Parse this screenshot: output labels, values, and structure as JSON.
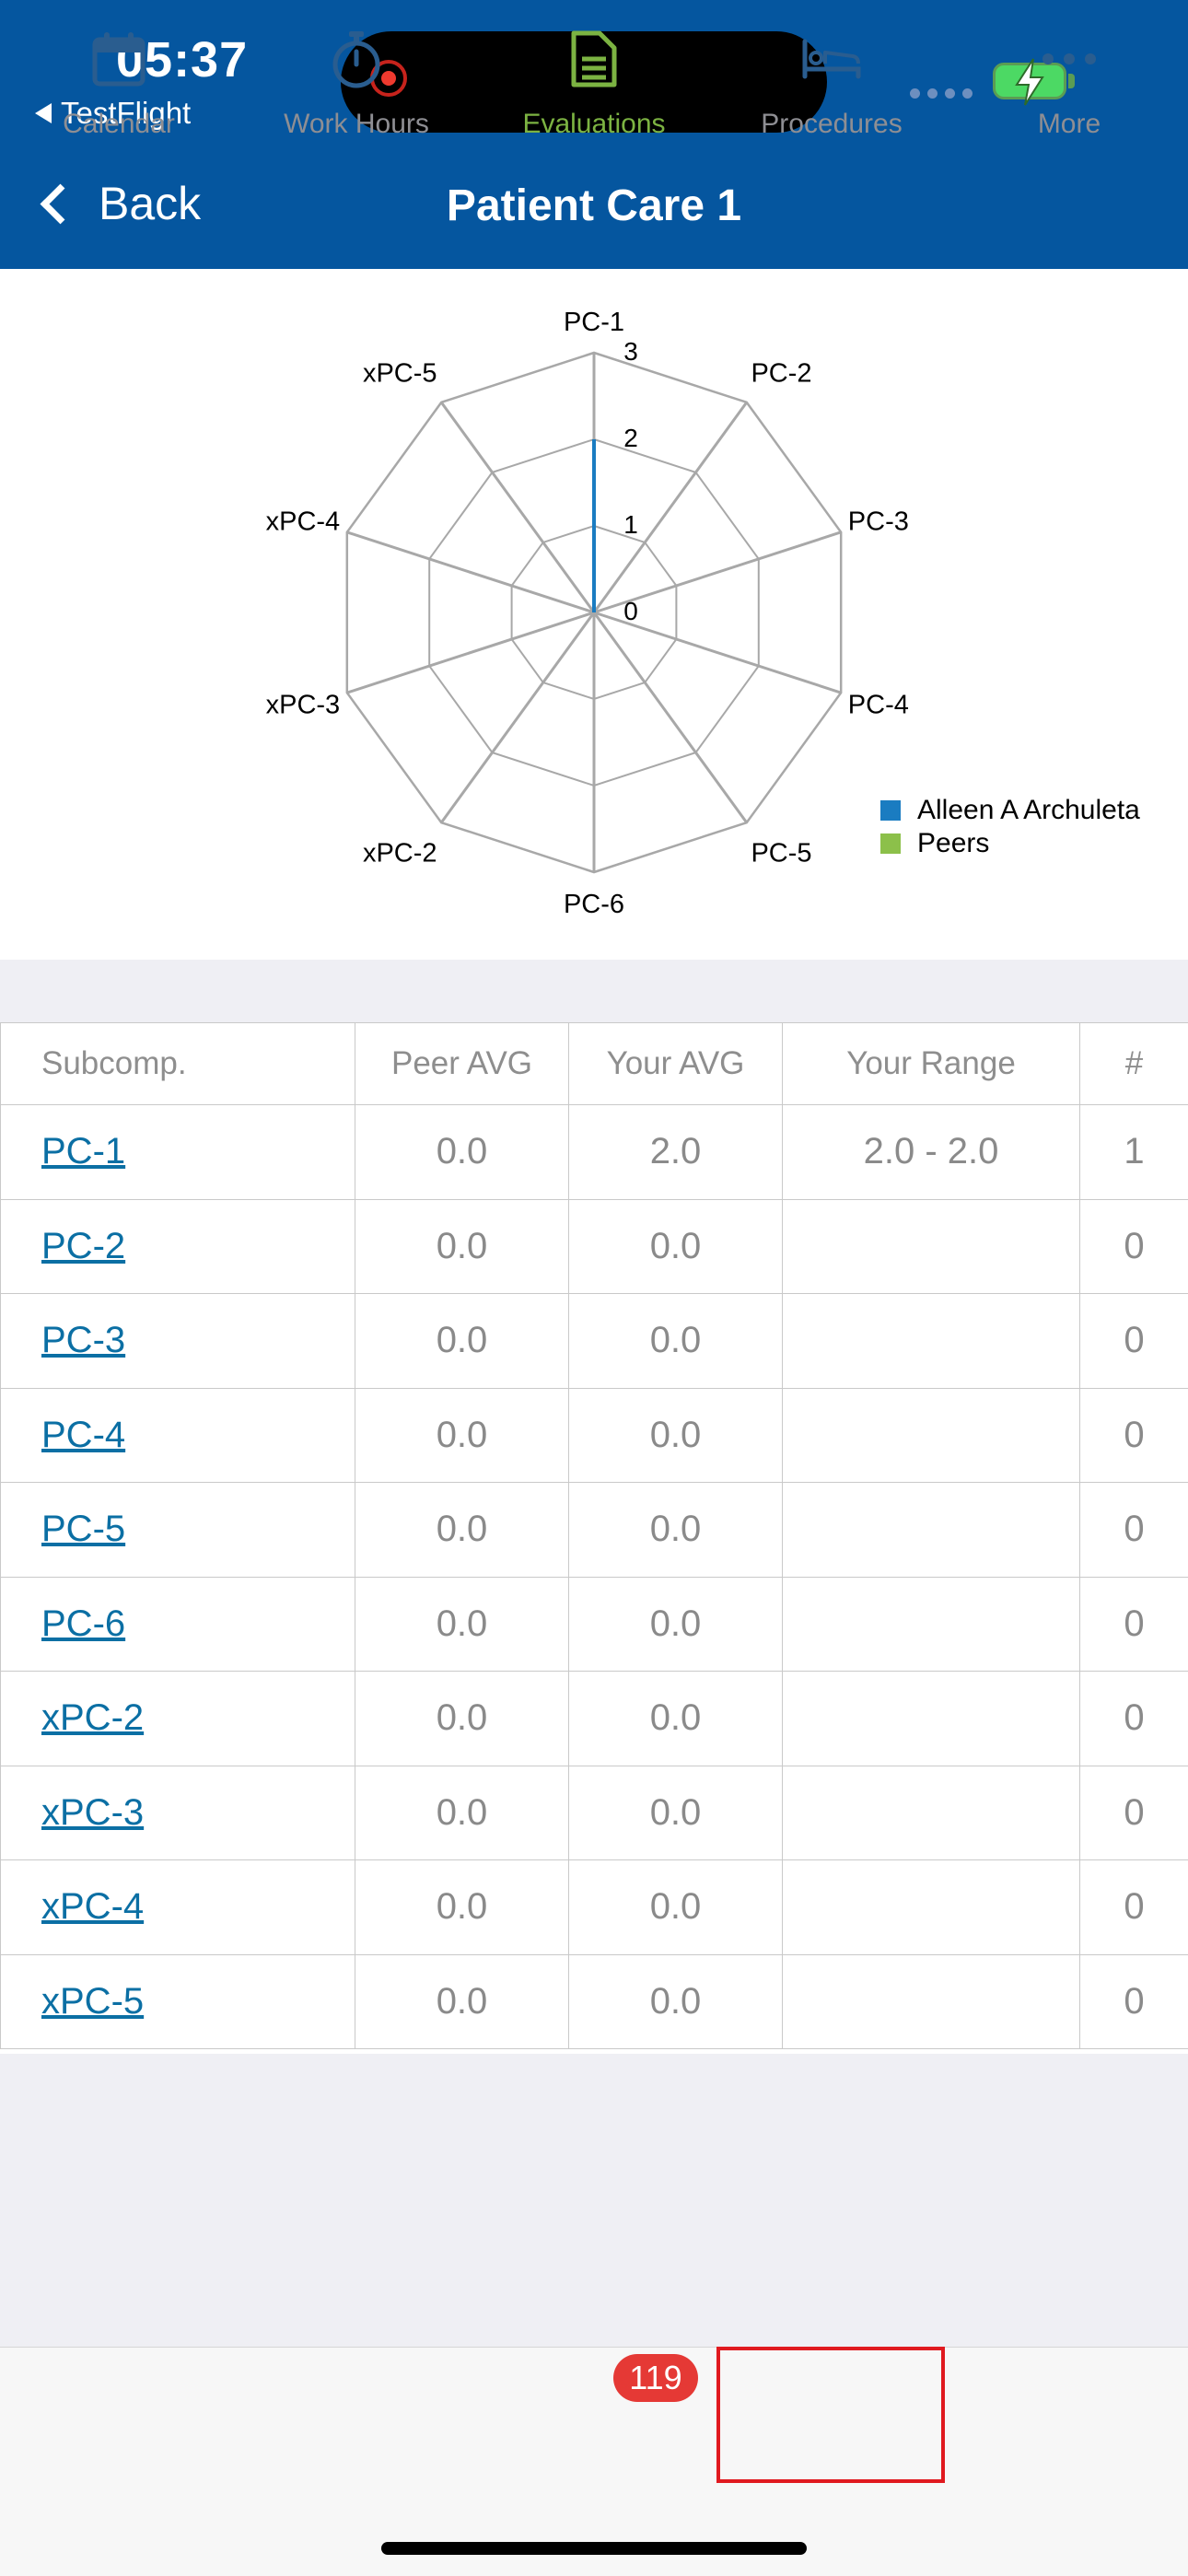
{
  "status_bar": {
    "time": "05:37",
    "back_app": "TestFlight"
  },
  "nav": {
    "back_label": "Back",
    "title": "Patient Care 1"
  },
  "chart_data": {
    "type": "radar",
    "axes": [
      "PC-1",
      "PC-2",
      "PC-3",
      "PC-4",
      "PC-5",
      "PC-6",
      "xPC-2",
      "xPC-3",
      "xPC-4",
      "xPC-5"
    ],
    "scale_ticks": [
      "0",
      "1",
      "2",
      "3"
    ],
    "range": [
      0,
      3
    ],
    "series": [
      {
        "name": "Alleen A Archuleta",
        "color": "#1a7cc1",
        "values": [
          2,
          0,
          0,
          0,
          0,
          0,
          0,
          0,
          0,
          0
        ]
      },
      {
        "name": "Peers",
        "color": "#8cc04a",
        "values": [
          0,
          0,
          0,
          0,
          0,
          0,
          0,
          0,
          0,
          0
        ]
      }
    ],
    "legend_position": "bottom-right"
  },
  "table": {
    "headers": [
      "Subcomp.",
      "Peer AVG",
      "Your AVG",
      "Your Range",
      "#"
    ],
    "rows": [
      {
        "sub": "PC-1",
        "peer": "0.0",
        "your": "2.0",
        "range": "2.0 - 2.0",
        "count": "1"
      },
      {
        "sub": "PC-2",
        "peer": "0.0",
        "your": "0.0",
        "range": "",
        "count": "0"
      },
      {
        "sub": "PC-3",
        "peer": "0.0",
        "your": "0.0",
        "range": "",
        "count": "0"
      },
      {
        "sub": "PC-4",
        "peer": "0.0",
        "your": "0.0",
        "range": "",
        "count": "0"
      },
      {
        "sub": "PC-5",
        "peer": "0.0",
        "your": "0.0",
        "range": "",
        "count": "0"
      },
      {
        "sub": "PC-6",
        "peer": "0.0",
        "your": "0.0",
        "range": "",
        "count": "0"
      },
      {
        "sub": "xPC-2",
        "peer": "0.0",
        "your": "0.0",
        "range": "",
        "count": "0"
      },
      {
        "sub": "xPC-3",
        "peer": "0.0",
        "your": "0.0",
        "range": "",
        "count": "0"
      },
      {
        "sub": "xPC-4",
        "peer": "0.0",
        "your": "0.0",
        "range": "",
        "count": "0"
      },
      {
        "sub": "xPC-5",
        "peer": "0.0",
        "your": "0.0",
        "range": "",
        "count": "0"
      }
    ]
  },
  "tabbar": {
    "tabs": [
      {
        "label": "Calendar",
        "icon": "calendar-icon"
      },
      {
        "label": "Work Hours",
        "icon": "stopwatch-icon"
      },
      {
        "label": "Evaluations",
        "icon": "document-icon"
      },
      {
        "label": "Procedures",
        "icon": "bed-icon"
      },
      {
        "label": "More",
        "icon": "more-icon"
      }
    ],
    "active": "Evaluations",
    "evaluations_badge": "119"
  },
  "colors": {
    "nav_bg": "#05569f",
    "link": "#0b6fa4",
    "tab_inactive": "#2a5d8f",
    "tab_active": "#7cb342",
    "badge": "#e53935",
    "highlight": "#e0191f"
  }
}
